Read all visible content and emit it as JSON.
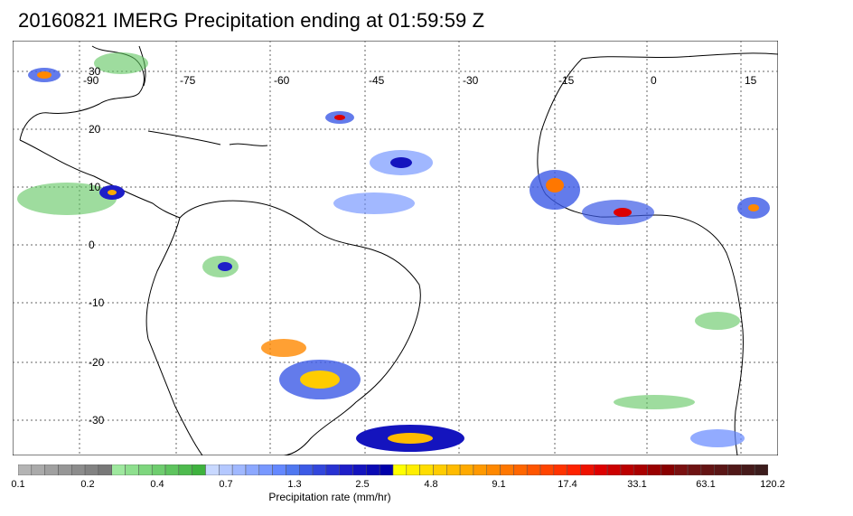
{
  "title": "20160821 IMERG Precipitation ending at 01:59:59 Z",
  "map": {
    "lon_labels": [
      "-90",
      "-75",
      "-60",
      "-45",
      "-30",
      "-15",
      "0",
      "15"
    ],
    "lat_labels": [
      "30",
      "20",
      "10",
      "0",
      "-10",
      "-20",
      "-30"
    ],
    "gridlines": true,
    "gridline_style": "dotted",
    "land_outline_color": "#000000"
  },
  "colorbar": {
    "title": "Precipitation rate (mm/hr)",
    "tick_labels": [
      "0.1",
      "0.2",
      "0.4",
      "0.7",
      "1.3",
      "2.5",
      "4.8",
      "9.1",
      "17.4",
      "33.1",
      "63.1",
      "120.2"
    ],
    "colors": [
      "#b4b4b4",
      "#aaaaaa",
      "#a0a0a0",
      "#969696",
      "#8c8c8c",
      "#828282",
      "#787878",
      "#9ee89e",
      "#8edf8e",
      "#7ed67e",
      "#6ecd6e",
      "#5ec45e",
      "#4ebb4e",
      "#3eb23e",
      "#c8d8ff",
      "#b4c8ff",
      "#a0b8ff",
      "#8ca8ff",
      "#7898ff",
      "#6488ff",
      "#5078f0",
      "#3c5ae6",
      "#3246dc",
      "#2832d2",
      "#1e1ec8",
      "#1414be",
      "#0a0ab4",
      "#0000aa",
      "#ffff00",
      "#ffee00",
      "#ffdd00",
      "#ffcc00",
      "#ffbb00",
      "#ffaa00",
      "#ff9900",
      "#ff8800",
      "#ff7700",
      "#ff6600",
      "#ff5500",
      "#ff4400",
      "#ff3300",
      "#ff2200",
      "#ee1100",
      "#dd0000",
      "#cc0000",
      "#bb0000",
      "#aa0000",
      "#990000",
      "#880000",
      "#7a1010",
      "#6e1212",
      "#641414",
      "#5a1616",
      "#501818",
      "#461a1a",
      "#3c1c1c"
    ]
  }
}
